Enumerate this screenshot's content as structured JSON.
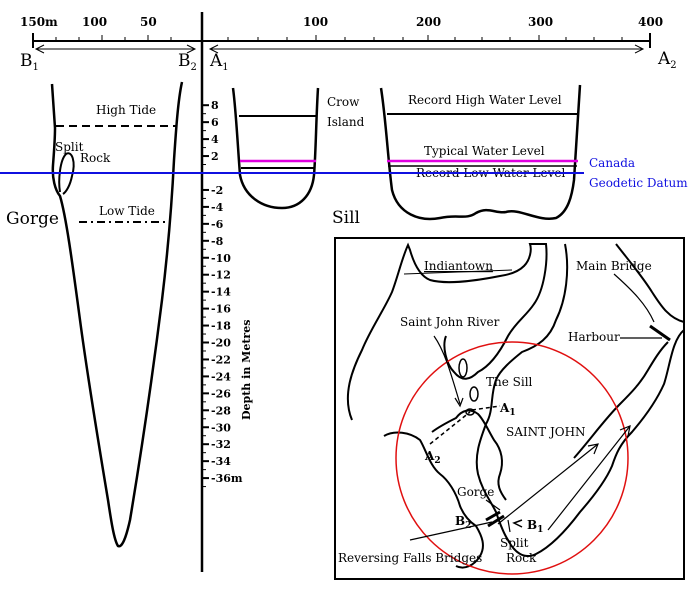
{
  "top_scale": {
    "left_ticks": [
      "150m",
      "100",
      "50"
    ],
    "right_ticks": [
      "100",
      "200",
      "300",
      "400"
    ],
    "label_b1": "B",
    "label_b1_sub": "1",
    "label_b2": "B",
    "label_b2_sub": "2",
    "label_a1": "A",
    "label_a1_sub": "1",
    "label_a2": "A",
    "label_a2_sub": "2"
  },
  "depth_axis": {
    "label": "Depth in Metres",
    "ticks": [
      "8",
      "6",
      "4",
      "2",
      "-2",
      "-4",
      "-6",
      "-8",
      "-10",
      "-12",
      "-14",
      "-16",
      "-18",
      "-20",
      "-22",
      "-24",
      "-26",
      "-28",
      "-30",
      "-32",
      "-34",
      "-36m"
    ]
  },
  "gorge": {
    "title": "Gorge",
    "high_tide": "High Tide",
    "low_tide": "Low Tide",
    "split_rock_1": "Split",
    "split_rock_2": "Rock"
  },
  "sill": {
    "title": "Sill",
    "crow_island_1": "Crow",
    "crow_island_2": "Island",
    "record_high": "Record High Water Level",
    "typical": "Typical Water Level",
    "record_low": "Record Low Water Level"
  },
  "datum": {
    "line1": "Canada",
    "line2": "Geodetic Datum"
  },
  "map": {
    "indiantown": "Indiantown",
    "main_bridge": "Main Bridge",
    "saint_john_river": "Saint John River",
    "harbour": "Harbour",
    "the_sill": "The Sill",
    "saint_john": "SAINT JOHN",
    "gorge": "Gorge",
    "split_rock_1": "Split",
    "split_rock_2": "Rock",
    "reversing_falls": "Reversing Falls Bridges",
    "a1": "A",
    "a1_sub": "1",
    "a2": "A",
    "a2_sub": "2",
    "b1": "B",
    "b1_sub": "1",
    "b2": "B",
    "b2_sub": "2"
  },
  "colors": {
    "datum_line": "#1010e0",
    "typical_line": "#e000e0",
    "typical_text": "#d000d0",
    "datum_text": "#1010e0",
    "circle": "#e01010"
  }
}
